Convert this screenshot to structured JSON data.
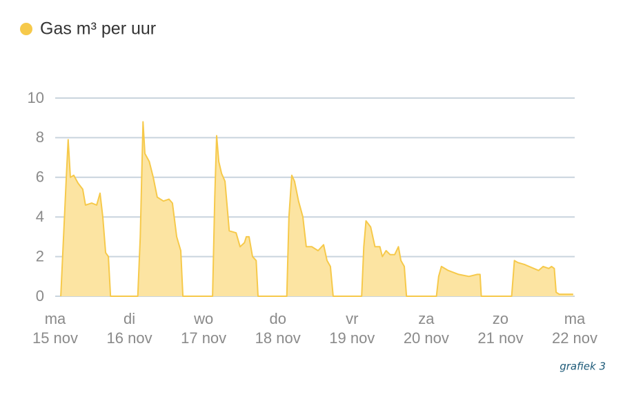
{
  "chart_data": {
    "type": "area",
    "x": [
      1.8,
      2.7,
      3.6,
      4.2,
      4.9,
      6,
      7.4,
      8.9,
      9.8,
      11.8,
      13.4,
      14.5,
      15.4,
      16.3,
      17.2,
      17.9,
      26.7,
      27.5,
      28.4,
      29,
      30.4,
      31.7,
      33,
      35,
      36.8,
      37.9,
      39.3,
      40.6,
      41.3,
      50.9,
      51.6,
      52.2,
      52.9,
      53.8,
      54.9,
      56.3,
      58.5,
      59.8,
      61.2,
      61.8,
      62.7,
      63.8,
      65,
      65.6,
      74.9,
      75.6,
      76.5,
      77.4,
      78.7,
      80.1,
      81.2,
      83,
      85,
      86.8,
      87.9,
      89,
      89.9,
      99.1,
      99.8,
      100.5,
      102,
      103.4,
      105,
      105.8,
      107,
      108.3,
      109.8,
      111,
      111.8,
      112.9,
      113.6,
      123.3,
      124,
      124.9,
      127.1,
      130.5,
      133.8,
      136.5,
      137.4,
      137.8,
      147.6,
      148.5,
      149.6,
      151.8,
      156.3,
      157.8,
      159.6,
      160.5,
      161.4,
      162,
      163,
      167.5
    ],
    "series": [
      {
        "name": "Gas m³ per uur",
        "color": "#f6c94a",
        "fill": "#fce4a2",
        "values": [
          0,
          3,
          6,
          7.9,
          6,
          6.1,
          5.7,
          5.4,
          4.6,
          4.7,
          4.6,
          5.2,
          4,
          2.2,
          2,
          0,
          0,
          3,
          8.8,
          7.2,
          6.8,
          6,
          5,
          4.8,
          4.9,
          4.7,
          3,
          2.3,
          0,
          0,
          5,
          8.1,
          6.8,
          6.2,
          5.8,
          3.3,
          3.2,
          2.5,
          2.7,
          3,
          3,
          2,
          1.8,
          0,
          0,
          4,
          6.1,
          5.8,
          4.8,
          4,
          2.5,
          2.5,
          2.3,
          2.6,
          1.8,
          1.5,
          0,
          0,
          2.5,
          3.8,
          3.5,
          2.5,
          2.5,
          2,
          2.3,
          2.1,
          2.1,
          2.5,
          1.8,
          1.5,
          0,
          0,
          1,
          1.5,
          1.3,
          1.1,
          1,
          1.1,
          1.1,
          0,
          0,
          1.8,
          1.7,
          1.6,
          1.3,
          1.5,
          1.4,
          1.5,
          1.4,
          0.2,
          0.1,
          0.1
        ]
      }
    ],
    "xlim": [
      0,
      168
    ],
    "xticks": [
      {
        "value": 0,
        "label": "ma"
      },
      {
        "value": 24,
        "label": "di"
      },
      {
        "value": 48,
        "label": "wo"
      },
      {
        "value": 72,
        "label": "do"
      },
      {
        "value": 96,
        "label": "vr"
      },
      {
        "value": 120,
        "label": "za"
      },
      {
        "value": 144,
        "label": "zo"
      },
      {
        "value": 168,
        "label": "ma"
      }
    ],
    "x_dates": [
      "15 nov",
      "16 nov",
      "17 nov",
      "18 nov",
      "19 nov",
      "20 nov",
      "21 nov",
      "22 nov"
    ],
    "ylim": [
      0,
      10
    ],
    "yticks": [
      0,
      2,
      4,
      6,
      8,
      10
    ],
    "grid": true,
    "caption": "grafiek 3"
  }
}
